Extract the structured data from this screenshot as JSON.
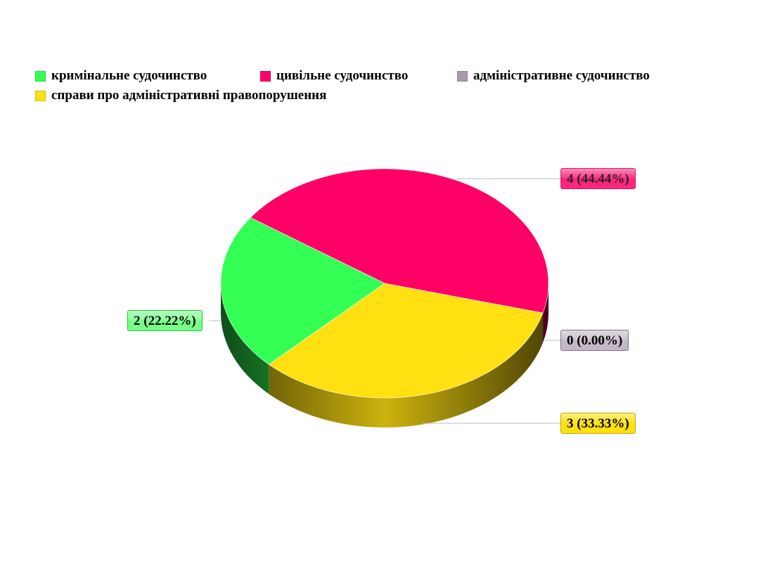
{
  "chart_data": {
    "type": "pie",
    "3d": true,
    "legend_position": "top-left",
    "series": [
      {
        "name": "кримінальне судочинство",
        "value": 2,
        "label": "2 (22.22%)",
        "color": "#33ff55"
      },
      {
        "name": "цивільне судочинство",
        "value": 4,
        "label": "4 (44.44%)",
        "color": "#ff0066"
      },
      {
        "name": "адміністративне судочинство",
        "value": 0,
        "label": "0 (0.00%)",
        "color": "#a899ab"
      },
      {
        "name": "справи про адміністративні правопорушення",
        "value": 3,
        "label": "3 (33.33%)",
        "color": "#ffe010"
      }
    ]
  }
}
